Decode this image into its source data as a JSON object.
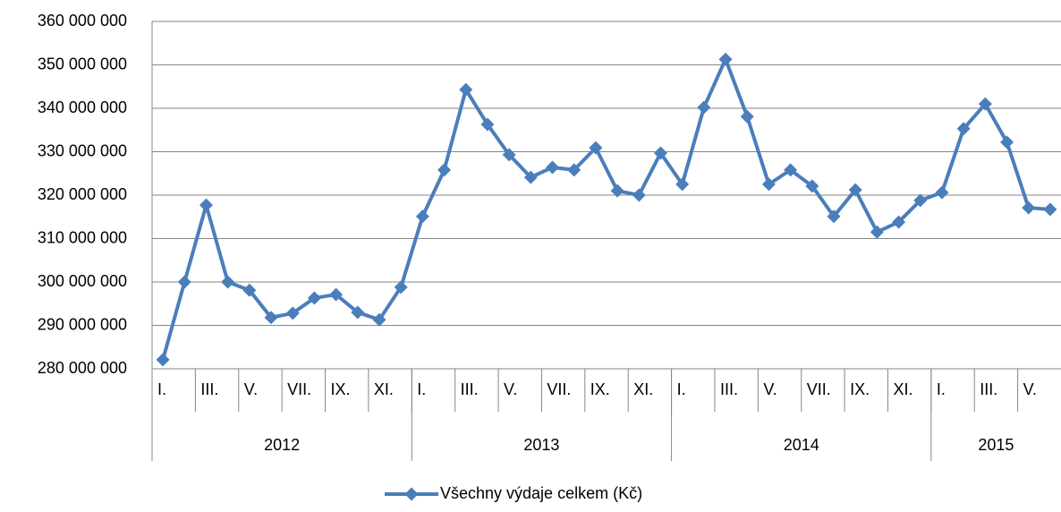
{
  "chart_data": {
    "type": "line",
    "categories": [
      "I.",
      null,
      "III.",
      null,
      "V.",
      null,
      "VII.",
      null,
      "IX.",
      null,
      "XI.",
      null,
      "I.",
      null,
      "III.",
      null,
      "V.",
      null,
      "VII.",
      null,
      "IX.",
      null,
      "XI.",
      null,
      "I.",
      null,
      "III.",
      null,
      "V.",
      null,
      "VII.",
      null,
      "IX.",
      null,
      "XI.",
      null,
      "I.",
      null,
      "III.",
      null,
      "V.",
      null
    ],
    "groups": [
      "2012",
      "2013",
      "2014",
      "2015"
    ],
    "series": [
      {
        "name": "Všechny výdaje celkem (Kč)",
        "color": "#4a7ebb",
        "values": [
          282100000,
          300000000,
          317700000,
          300000000,
          298100000,
          291800000,
          292800000,
          296300000,
          297100000,
          293000000,
          291300000,
          298800000,
          315100000,
          325800000,
          344300000,
          336300000,
          329300000,
          324100000,
          326400000,
          325800000,
          330900000,
          321000000,
          320000000,
          329700000,
          322500000,
          340200000,
          351300000,
          338100000,
          322500000,
          325800000,
          322100000,
          315100000,
          321200000,
          311500000,
          313800000,
          318800000,
          320600000,
          335300000,
          341000000,
          332200000,
          317100000,
          316700000
        ]
      }
    ],
    "ylim": [
      280000000,
      360000000
    ],
    "yticks": [
      {
        "value": 280000000,
        "label": "280 000 000"
      },
      {
        "value": 290000000,
        "label": "290 000 000"
      },
      {
        "value": 300000000,
        "label": "300 000 000"
      },
      {
        "value": 310000000,
        "label": "310 000 000"
      },
      {
        "value": 320000000,
        "label": "320 000 000"
      },
      {
        "value": 330000000,
        "label": "330 000 000"
      },
      {
        "value": 340000000,
        "label": "340 000 000"
      },
      {
        "value": 350000000,
        "label": "350 000 000"
      },
      {
        "value": 360000000,
        "label": "360 000 000"
      }
    ],
    "grid": true,
    "legend": "bottom"
  }
}
